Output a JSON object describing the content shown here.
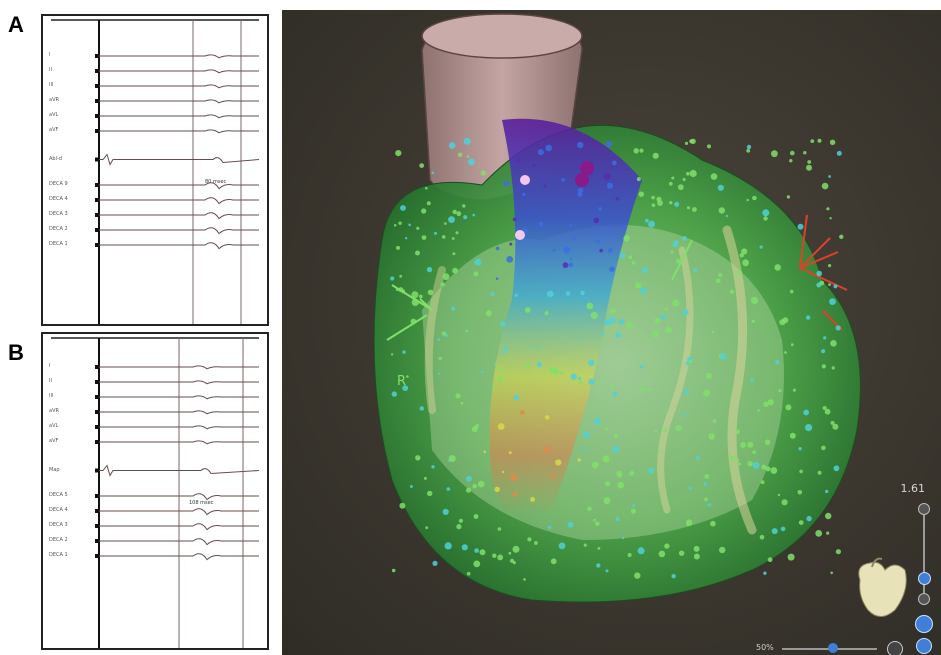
{
  "panels": {
    "a_label": "A",
    "b_label": "B"
  },
  "ecg_a": {
    "leads": [
      "I",
      "II",
      "III",
      "aVR",
      "aVL",
      "aVF",
      "Abl-d",
      "DECA 9",
      "DECA 4",
      "DECA 3",
      "DECA 2",
      "DECA 1"
    ],
    "interval": "80 msec"
  },
  "ecg_b": {
    "leads": [
      "I",
      "II",
      "III",
      "aVR",
      "aVL",
      "aVF",
      "Map",
      "DECA 5",
      "DECA 4",
      "DECA 3",
      "DECA 2",
      "DECA 1"
    ],
    "interval": "108 msec"
  },
  "map": {
    "scale_value": "1.61",
    "zoom_label": "50%",
    "colors": {
      "background": "#3b372f",
      "aorta": "#b79a98",
      "chamber": "#3f9a3f",
      "activation_early": "#e8f0ff",
      "activation_late": "#4a1a8f",
      "ablation_marker": "#e0402a"
    }
  }
}
